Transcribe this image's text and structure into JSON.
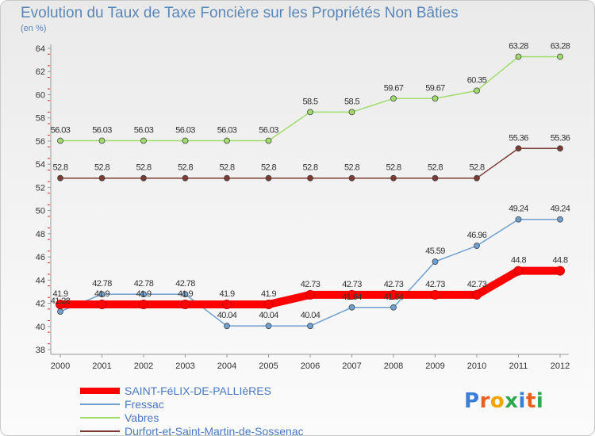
{
  "header": {
    "title": "Evolution du Taux de Taxe Foncière sur les Propriétés Non Bâties",
    "subtitle": "(en %)"
  },
  "logo": {
    "text": "Proxiti",
    "colors": [
      "#3a7fd5",
      "#e8601c",
      "#f0a500",
      "#2fa84f",
      "#3a7fd5",
      "#e8601c",
      "#2fa84f"
    ]
  },
  "chart_data": {
    "type": "line",
    "x": [
      "2000",
      "2001",
      "2002",
      "2003",
      "2004",
      "2005",
      "2006",
      "2007",
      "2008",
      "2009",
      "2010",
      "2011",
      "2012"
    ],
    "ylim": [
      38,
      64
    ],
    "yticks": [
      38,
      40,
      42,
      44,
      46,
      48,
      50,
      52,
      54,
      56,
      58,
      60,
      62,
      64
    ],
    "grid": false,
    "legend_position": "bottom-left",
    "series": [
      {
        "name": "SAINT-FéLIX-DE-PALLIèRES",
        "color": "#ff0000",
        "emphasis": true,
        "values": [
          41.9,
          41.9,
          41.9,
          41.9,
          41.9,
          41.9,
          42.73,
          42.73,
          42.73,
          42.73,
          42.73,
          44.8,
          44.8
        ],
        "labels": [
          "41.9",
          "41.9",
          "41.9",
          "41.9",
          "41.9",
          "41.9",
          "42.73",
          "42.73",
          "42.73",
          "42.73",
          "42.73",
          "44.8",
          "44.8"
        ]
      },
      {
        "name": "Fressac",
        "color": "#6fa0d2",
        "values": [
          41.28,
          42.78,
          42.78,
          42.78,
          40.04,
          40.04,
          40.04,
          41.64,
          41.64,
          45.59,
          46.96,
          49.24,
          49.24
        ],
        "labels": [
          "41.28",
          "42.78",
          "42.78",
          "42.78",
          "40.04",
          "40.04",
          "40.04",
          "41.64",
          "41.64",
          "45.59",
          "46.96",
          "49.24",
          "49.24"
        ]
      },
      {
        "name": "Vabres",
        "color": "#9fdc6b",
        "values": [
          56.03,
          56.03,
          56.03,
          56.03,
          56.03,
          56.03,
          58.5,
          58.5,
          59.67,
          59.67,
          60.35,
          63.28,
          63.28
        ],
        "labels": [
          "56.03",
          "56.03",
          "56.03",
          "56.03",
          "56.03",
          "56.03",
          "58.5",
          "58.5",
          "59.67",
          "59.67",
          "60.35",
          "63.28",
          "63.28"
        ]
      },
      {
        "name": "Durfort-et-Saint-Martin-de-Sossenac",
        "color": "#7b3a32",
        "values": [
          52.8,
          52.8,
          52.8,
          52.8,
          52.8,
          52.8,
          52.8,
          52.8,
          52.8,
          52.8,
          52.8,
          55.36,
          55.36
        ],
        "labels": [
          "52.8",
          "52.8",
          "52.8",
          "52.8",
          "52.8",
          "52.8",
          "52.8",
          "52.8",
          "52.8",
          "52.8",
          "52.8",
          "55.36",
          "55.36"
        ]
      }
    ]
  }
}
